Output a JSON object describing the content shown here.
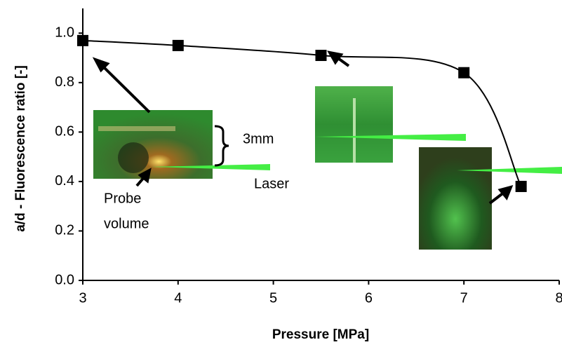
{
  "chart_data": {
    "type": "scatter",
    "x": [
      3,
      4,
      5.5,
      7,
      7.6
    ],
    "values": [
      0.97,
      0.95,
      0.91,
      0.84,
      0.38
    ],
    "color": "#000000",
    "line": true,
    "xlim": [
      3,
      8
    ],
    "xticks": [
      3,
      4,
      5,
      6,
      7,
      8
    ],
    "ylim": [
      0,
      1.1
    ],
    "yticks": [
      {
        "value": 0,
        "label": "0.0"
      },
      0.2,
      0.4,
      0.6,
      0.8,
      {
        "value": 1,
        "label": "1.0"
      }
    ],
    "xlabel": "Pressure [MPa]",
    "ylabel": "a/d - Fluorescence ratio [-]",
    "annotations": {
      "gap": "3mm",
      "laser": "Laser",
      "probe": [
        "Probe",
        "volume"
      ]
    }
  }
}
